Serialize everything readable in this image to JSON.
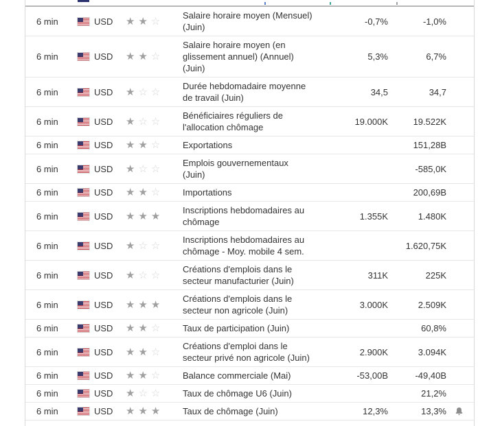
{
  "icons": {
    "star_filled": "★",
    "star_empty": "☆",
    "flag": "us-flag",
    "bell": "bell"
  },
  "colors": {
    "text": "#333333",
    "row_border": "#e7e7e7",
    "table_border": "#d9d9d9",
    "day_separator": "#b7b7b7",
    "star_filled": "#a0a0a0",
    "star_empty": "#d4d4d4",
    "bell": "#8c8c8c",
    "flag_canton": "#3c3b6e",
    "flag_stripe": "#c43b44"
  },
  "table": {
    "rows": [
      {
        "time": "6 min",
        "currency": "USD",
        "importance": 2,
        "event_lines": [
          "Salaire horaire moyen (Mensuel)",
          "(Juin)"
        ],
        "forecast": "-0,7%",
        "previous": "-1,0%",
        "bell": false
      },
      {
        "time": "6 min",
        "currency": "USD",
        "importance": 2,
        "event_lines": [
          "Salaire horaire moyen (en",
          "glissement annuel) (Annuel)",
          "(Juin)"
        ],
        "forecast": "5,3%",
        "previous": "6,7%",
        "bell": false
      },
      {
        "time": "6 min",
        "currency": "USD",
        "importance": 1,
        "event_lines": [
          "Durée hebdomadaire moyenne",
          "de travail (Juin)"
        ],
        "forecast": "34,5",
        "previous": "34,7",
        "bell": false
      },
      {
        "time": "6 min",
        "currency": "USD",
        "importance": 1,
        "event_lines": [
          "Bénéficiaires réguliers de",
          "l'allocation chômage"
        ],
        "forecast": "19.000K",
        "previous": "19.522K",
        "bell": false
      },
      {
        "time": "6 min",
        "currency": "USD",
        "importance": 2,
        "event_lines": [
          "Exportations"
        ],
        "forecast": "",
        "previous": "151,28B",
        "bell": false
      },
      {
        "time": "6 min",
        "currency": "USD",
        "importance": 1,
        "event_lines": [
          "Emplois gouvernementaux",
          "(Juin)"
        ],
        "forecast": "",
        "previous": "-585,0K",
        "bell": false
      },
      {
        "time": "6 min",
        "currency": "USD",
        "importance": 2,
        "event_lines": [
          "Importations"
        ],
        "forecast": "",
        "previous": "200,69B",
        "bell": false
      },
      {
        "time": "6 min",
        "currency": "USD",
        "importance": 3,
        "event_lines": [
          "Inscriptions hebdomadaires au",
          "chômage"
        ],
        "forecast": "1.355K",
        "previous": "1.480K",
        "bell": false
      },
      {
        "time": "6 min",
        "currency": "USD",
        "importance": 1,
        "event_lines": [
          "Inscriptions hebdomadaires au",
          "chômage - Moy. mobile 4 sem."
        ],
        "forecast": "",
        "previous": "1.620,75K",
        "bell": false
      },
      {
        "time": "6 min",
        "currency": "USD",
        "importance": 1,
        "event_lines": [
          "Créations d'emplois dans le",
          "secteur manufacturier (Juin)"
        ],
        "forecast": "311K",
        "previous": "225K",
        "bell": false
      },
      {
        "time": "6 min",
        "currency": "USD",
        "importance": 3,
        "event_lines": [
          "Créations d'emplois dans le",
          "secteur non agricole (Juin)"
        ],
        "forecast": "3.000K",
        "previous": "2.509K",
        "bell": false
      },
      {
        "time": "6 min",
        "currency": "USD",
        "importance": 2,
        "event_lines": [
          "Taux de participation (Juin)"
        ],
        "forecast": "",
        "previous": "60,8%",
        "bell": false
      },
      {
        "time": "6 min",
        "currency": "USD",
        "importance": 2,
        "event_lines": [
          "Créations d'emploi dans le",
          "secteur privé non agricole (Juin)"
        ],
        "forecast": "2.900K",
        "previous": "3.094K",
        "bell": false
      },
      {
        "time": "6 min",
        "currency": "USD",
        "importance": 2,
        "event_lines": [
          "Balance commerciale (Mai)"
        ],
        "forecast": "-53,00B",
        "previous": "-49,40B",
        "bell": false
      },
      {
        "time": "6 min",
        "currency": "USD",
        "importance": 1,
        "event_lines": [
          "Taux de chômage U6 (Juin)"
        ],
        "forecast": "",
        "previous": "21,2%",
        "bell": false
      },
      {
        "time": "6 min",
        "currency": "USD",
        "importance": 3,
        "event_lines": [
          "Taux de chômage (Juin)"
        ],
        "forecast": "12,3%",
        "previous": "13,3%",
        "bell": true
      }
    ]
  }
}
